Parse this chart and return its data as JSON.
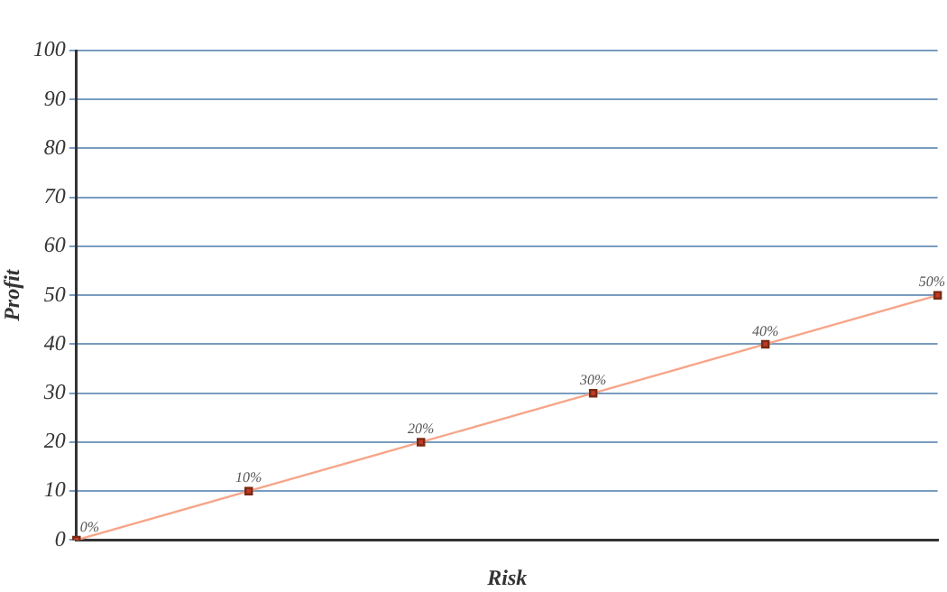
{
  "chart_data": {
    "type": "line",
    "xlabel": "Risk",
    "ylabel": "Profit",
    "categories": [
      null,
      null,
      null,
      null,
      null,
      null
    ],
    "series": [
      {
        "color": "#f7a58a",
        "values": [
          0,
          10,
          20,
          30,
          40,
          50
        ],
        "value_labels": [
          "0%",
          "10%",
          "20%",
          "30%",
          "40%",
          "50%"
        ]
      }
    ],
    "ylim": [
      0,
      100
    ],
    "yticks": [
      0,
      10,
      20,
      30,
      40,
      50,
      60,
      70,
      80,
      90,
      100
    ],
    "grid": "y",
    "marker": "square",
    "legend": false
  }
}
